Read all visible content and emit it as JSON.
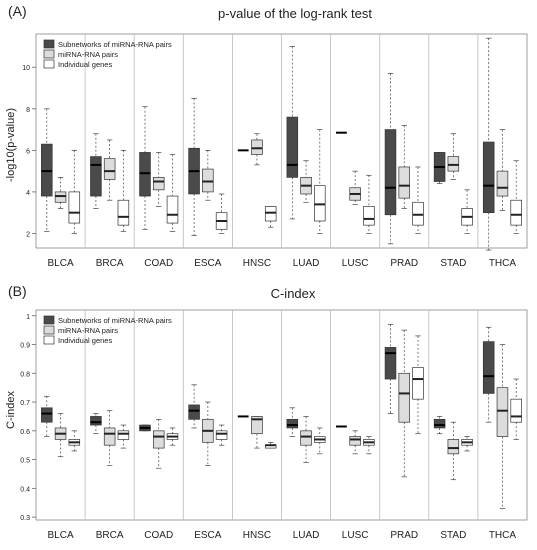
{
  "colors": {
    "subnetworks": "#4a4a4a",
    "mirna": "#dcdcdc",
    "genes": "#ffffff",
    "axis": "#555555",
    "divider": "#bbbbbb"
  },
  "legend_labels": [
    "Subnetworks of miRNA-RNA pairs",
    "miRNA-RNA pairs",
    "Individual genes"
  ],
  "chart_data": [
    {
      "panel_label": "(A)",
      "type": "boxplot",
      "title": "p-value of the log-rank test",
      "ylabel": "-log10(p-value)",
      "ylim": [
        1.3,
        11.6
      ],
      "yticks": [
        2,
        4,
        6,
        8,
        10
      ],
      "legend_position": "top-left",
      "categories": [
        "BLCA",
        "BRCA",
        "COAD",
        "ESCA",
        "HNSC",
        "LUAD",
        "LUSC",
        "PRAD",
        "STAD",
        "THCA"
      ],
      "series": [
        {
          "name": "Subnetworks of miRNA-RNA pairs",
          "values": [
            [
              2.1,
              3.8,
              5.0,
              6.3,
              8.0
            ],
            [
              3.2,
              3.8,
              5.3,
              5.7,
              6.8
            ],
            [
              2.2,
              3.8,
              4.9,
              5.9,
              8.1
            ],
            [
              1.9,
              3.9,
              5.0,
              6.1,
              8.5
            ],
            [
              6.0,
              6.0,
              6.0,
              6.0,
              6.0
            ],
            [
              2.7,
              4.7,
              5.3,
              7.6,
              11.0
            ],
            [
              6.85,
              6.85,
              6.85,
              6.85,
              6.85
            ],
            [
              1.5,
              2.9,
              4.2,
              7.0,
              9.7
            ],
            [
              4.4,
              4.5,
              5.2,
              5.9,
              5.9
            ],
            [
              1.2,
              3.0,
              4.3,
              6.4,
              11.4
            ]
          ]
        },
        {
          "name": "miRNA-RNA pairs",
          "values": [
            [
              3.2,
              3.5,
              3.8,
              4.0,
              4.7
            ],
            [
              3.6,
              4.6,
              5.0,
              5.6,
              6.5
            ],
            [
              3.3,
              4.1,
              4.5,
              4.7,
              5.9
            ],
            [
              3.6,
              4.0,
              4.5,
              5.1,
              6.0
            ],
            [
              5.3,
              5.8,
              6.1,
              6.5,
              6.8
            ],
            [
              3.5,
              3.9,
              4.3,
              4.7,
              5.5
            ],
            [
              3.4,
              3.6,
              3.9,
              4.2,
              5.0
            ],
            [
              3.2,
              3.7,
              4.3,
              5.2,
              7.2
            ],
            [
              4.6,
              5.0,
              5.3,
              5.7,
              6.8
            ],
            [
              3.1,
              3.8,
              4.2,
              5.0,
              7.0
            ]
          ]
        },
        {
          "name": "Individual genes",
          "values": [
            [
              2.0,
              2.5,
              3.0,
              4.0,
              6.0
            ],
            [
              2.1,
              2.4,
              2.8,
              3.6,
              6.0
            ],
            [
              2.1,
              2.5,
              2.9,
              3.8,
              5.8
            ],
            [
              2.0,
              2.2,
              2.6,
              3.0,
              3.9
            ],
            [
              2.3,
              2.6,
              3.0,
              3.3,
              3.3
            ],
            [
              2.0,
              2.6,
              3.4,
              4.3,
              7.0
            ],
            [
              2.0,
              2.4,
              2.7,
              3.3,
              4.8
            ],
            [
              2.0,
              2.4,
              2.9,
              3.5,
              5.2
            ],
            [
              2.0,
              2.4,
              2.8,
              3.2,
              4.1
            ],
            [
              2.0,
              2.4,
              2.9,
              3.6,
              5.5
            ]
          ]
        }
      ]
    },
    {
      "panel_label": "(B)",
      "type": "boxplot",
      "title": "C-index",
      "ylabel": "C-index",
      "ylim": [
        0.29,
        1.02
      ],
      "yticks": [
        0.3,
        0.4,
        0.5,
        0.6,
        0.7,
        0.8,
        0.9,
        1.0
      ],
      "legend_position": "top-left",
      "categories": [
        "BLCA",
        "BRCA",
        "COAD",
        "ESCA",
        "HNSC",
        "LUAD",
        "LUSC",
        "PRAD",
        "STAD",
        "THCA"
      ],
      "series": [
        {
          "name": "Subnetworks of miRNA-RNA pairs",
          "values": [
            [
              0.58,
              0.63,
              0.66,
              0.68,
              0.72
            ],
            [
              0.59,
              0.62,
              0.63,
              0.65,
              0.66
            ],
            [
              0.6,
              0.6,
              0.61,
              0.62,
              0.62
            ],
            [
              0.61,
              0.64,
              0.67,
              0.69,
              0.76
            ],
            [
              0.65,
              0.65,
              0.65,
              0.65,
              0.65
            ],
            [
              0.58,
              0.61,
              0.62,
              0.64,
              0.68
            ],
            [
              0.615,
              0.615,
              0.615,
              0.615,
              0.615
            ],
            [
              0.66,
              0.78,
              0.87,
              0.89,
              0.97
            ],
            [
              0.59,
              0.61,
              0.62,
              0.64,
              0.65
            ],
            [
              0.63,
              0.73,
              0.79,
              0.91,
              0.96
            ]
          ]
        },
        {
          "name": "miRNA-RNA pairs",
          "values": [
            [
              0.51,
              0.57,
              0.59,
              0.61,
              0.66
            ],
            [
              0.48,
              0.55,
              0.59,
              0.61,
              0.67
            ],
            [
              0.47,
              0.54,
              0.58,
              0.6,
              0.64
            ],
            [
              0.48,
              0.56,
              0.6,
              0.64,
              0.7
            ],
            [
              0.54,
              0.59,
              0.64,
              0.65,
              0.65
            ],
            [
              0.49,
              0.55,
              0.58,
              0.6,
              0.65
            ],
            [
              0.52,
              0.55,
              0.57,
              0.58,
              0.6
            ],
            [
              0.44,
              0.63,
              0.73,
              0.8,
              0.95
            ],
            [
              0.43,
              0.52,
              0.54,
              0.57,
              0.63
            ],
            [
              0.33,
              0.58,
              0.67,
              0.75,
              0.9
            ]
          ]
        },
        {
          "name": "Individual genes",
          "values": [
            [
              0.53,
              0.55,
              0.56,
              0.57,
              0.6
            ],
            [
              0.54,
              0.57,
              0.59,
              0.6,
              0.62
            ],
            [
              0.55,
              0.57,
              0.58,
              0.59,
              0.61
            ],
            [
              0.55,
              0.57,
              0.59,
              0.6,
              0.62
            ],
            [
              0.54,
              0.54,
              0.55,
              0.55,
              0.56
            ],
            [
              0.52,
              0.56,
              0.57,
              0.58,
              0.61
            ],
            [
              0.52,
              0.55,
              0.56,
              0.57,
              0.58
            ],
            [
              0.59,
              0.71,
              0.78,
              0.82,
              0.93
            ],
            [
              0.53,
              0.55,
              0.56,
              0.57,
              0.58
            ],
            [
              0.57,
              0.63,
              0.65,
              0.71,
              0.78
            ]
          ]
        }
      ]
    }
  ]
}
